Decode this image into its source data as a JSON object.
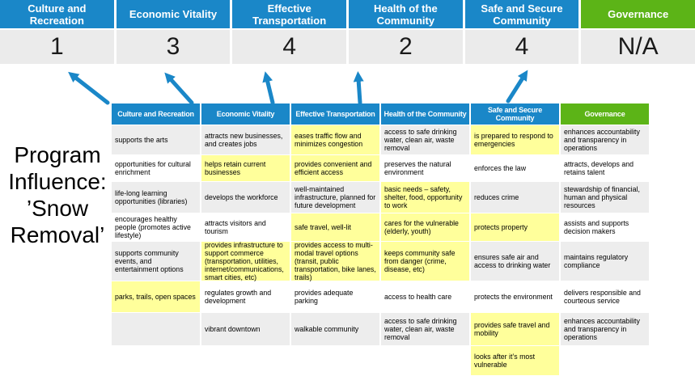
{
  "title": {
    "lines": [
      "Program",
      "Influence:",
      "’Snow",
      "Removal’"
    ]
  },
  "colors": {
    "blue": "#1a87c8",
    "green": "#5cb417",
    "highlight_yellow": "#ffff9b",
    "stripe_gray": "#ededed",
    "score_bg": "#ebebeb",
    "arrow_blue": "#1a87c8"
  },
  "scorecard": {
    "columns": [
      {
        "label": "Culture and Recreation",
        "score": "1",
        "color": "blue"
      },
      {
        "label": "Economic Vitality",
        "score": "3",
        "color": "blue"
      },
      {
        "label": "Effective Transportation",
        "score": "4",
        "color": "blue"
      },
      {
        "label": "Health of the Community",
        "score": "2",
        "color": "blue"
      },
      {
        "label": "Safe and Secure Community",
        "score": "4",
        "color": "blue"
      },
      {
        "label": "Governance",
        "score": "N/A",
        "color": "green"
      }
    ]
  },
  "arrows": [
    "arrow-to-culture-and-recreation",
    "arrow-to-economic-vitality",
    "arrow-to-effective-transportation",
    "arrow-to-health-of-the-community",
    "arrow-to-safe-and-secure-community"
  ],
  "matrix": {
    "headers": [
      {
        "label": "Culture and Recreation",
        "color": "blue"
      },
      {
        "label": "Economic Vitality",
        "color": "blue"
      },
      {
        "label": "Effective Transportation",
        "color": "blue"
      },
      {
        "label": "Health of the Community",
        "color": "blue"
      },
      {
        "label": "Safe and Secure Community",
        "color": "blue"
      },
      {
        "label": "Governance",
        "color": "green"
      }
    ],
    "rows": [
      [
        {
          "text": "supports the arts"
        },
        {
          "text": "attracts new businesses, and creates jobs"
        },
        {
          "text": "eases traffic flow and minimizes congestion",
          "hl": true
        },
        {
          "text": "access to safe drinking water, clean air, waste removal"
        },
        {
          "text": "is prepared to respond to emergencies",
          "hl": true
        },
        {
          "text": "enhances accountability and transparency in operations"
        }
      ],
      [
        {
          "text": "opportunities for cultural enrichment"
        },
        {
          "text": "helps retain current businesses",
          "hl": true
        },
        {
          "text": "provides convenient and efficient access",
          "hl": true
        },
        {
          "text": "preserves the natural environment"
        },
        {
          "text": "enforces the law"
        },
        {
          "text": "attracts, develops and retains talent"
        }
      ],
      [
        {
          "text": "life-long learning opportunities (libraries)"
        },
        {
          "text": "develops the workforce"
        },
        {
          "text": "well-maintained infrastructure, planned for future development"
        },
        {
          "text": "basic needs – safety, shelter, food, opportunity to work",
          "hl": true
        },
        {
          "text": "reduces crime"
        },
        {
          "text": "stewardship of financial, human and physical resources"
        }
      ],
      [
        {
          "text": "encourages healthy people (promotes active lifestyle)"
        },
        {
          "text": "attracts visitors and tourism"
        },
        {
          "text": "safe travel, well-lit",
          "hl": true
        },
        {
          "text": "cares for the vulnerable (elderly, youth)",
          "hl": true
        },
        {
          "text": "protects property",
          "hl": true
        },
        {
          "text": "assists and supports decision makers"
        }
      ],
      [
        {
          "text": "supports community events, and entertainment options"
        },
        {
          "text": "provides infrastructure to support commerce (transportation, utilities, internet/communications, smart cities, etc)",
          "hl": true
        },
        {
          "text": "provides access to multi-modal travel options (transit, public transportation, bike lanes, trails)",
          "hl": true
        },
        {
          "text": "keeps community safe from danger (crime, disease, etc)",
          "hl": true
        },
        {
          "text": "ensures safe air and access to drinking water"
        },
        {
          "text": "maintains regulatory compliance"
        }
      ],
      [
        {
          "text": "parks, trails, open spaces",
          "hl": true
        },
        {
          "text": "regulates growth and development"
        },
        {
          "text": "provides adequate parking"
        },
        {
          "text": "access to health care"
        },
        {
          "text": "protects the environment"
        },
        {
          "text": "delivers responsible and courteous service"
        }
      ],
      [
        {
          "text": ""
        },
        {
          "text": "vibrant downtown"
        },
        {
          "text": "walkable community"
        },
        {
          "text": "access to safe drinking water, clean air, waste removal"
        },
        {
          "text": "provides safe travel and mobility",
          "hl": true
        },
        {
          "text": "enhances accountability and transparency in operations"
        }
      ],
      [
        {
          "text": ""
        },
        {
          "text": ""
        },
        {
          "text": ""
        },
        {
          "text": ""
        },
        {
          "text": "looks after it’s most vulnerable",
          "hl": true
        },
        {
          "text": ""
        }
      ]
    ]
  }
}
